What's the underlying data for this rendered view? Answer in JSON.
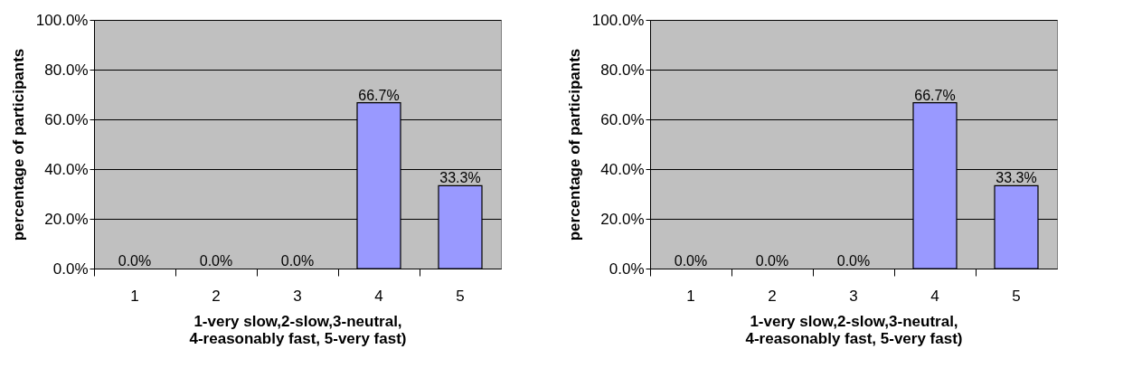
{
  "chart_data": [
    {
      "type": "bar",
      "categories": [
        "1",
        "2",
        "3",
        "4",
        "5"
      ],
      "values": [
        0,
        0,
        0,
        66.7,
        33.3
      ],
      "color": "#9999ff",
      "value_labels": [
        "0.0%",
        "0.0%",
        "0.0%",
        "66.7%",
        "33.3%"
      ],
      "xlabel": "1-very slow,2-slow,3-neutral,\n4-reasonably fast, 5-very fast)",
      "ylabel": "percentage of participants",
      "ylim": [
        0,
        100
      ],
      "yticks": [
        {
          "value": 0,
          "label": "0.0%"
        },
        {
          "value": 20,
          "label": "20.0%"
        },
        {
          "value": 40,
          "label": "40.0%"
        },
        {
          "value": 60,
          "label": "60.0%"
        },
        {
          "value": 80,
          "label": "80.0%"
        },
        {
          "value": 100,
          "label": "100.0%"
        }
      ],
      "grid": "y"
    },
    {
      "type": "bar",
      "categories": [
        "1",
        "2",
        "3",
        "4",
        "5"
      ],
      "values": [
        0,
        0,
        0,
        66.7,
        33.3
      ],
      "color": "#9999ff",
      "value_labels": [
        "0.0%",
        "0.0%",
        "0.0%",
        "66.7%",
        "33.3%"
      ],
      "xlabel": "1-very slow,2-slow,3-neutral,\n4-reasonably fast, 5-very fast)",
      "ylabel": "percentage of participants",
      "ylim": [
        0,
        100
      ],
      "yticks": [
        {
          "value": 0,
          "label": "0.0%"
        },
        {
          "value": 20,
          "label": "20.0%"
        },
        {
          "value": 40,
          "label": "40.0%"
        },
        {
          "value": 60,
          "label": "60.0%"
        },
        {
          "value": 80,
          "label": "80.0%"
        },
        {
          "value": 100,
          "label": "100.0%"
        }
      ],
      "grid": "y"
    }
  ]
}
